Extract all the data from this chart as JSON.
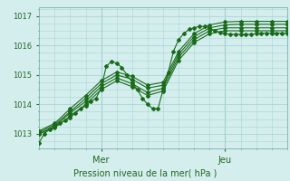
{
  "title": "Pression niveau de la mer( hPa )",
  "bg_color": "#d4eeee",
  "grid_color": "#aad4d4",
  "line_color": "#1a6b1a",
  "xlim": [
    0,
    96
  ],
  "ylim": [
    1012.5,
    1017.3
  ],
  "yticks": [
    1013,
    1014,
    1015,
    1016,
    1017
  ],
  "mer_x": 24,
  "jeu_x": 72,
  "series": [
    [
      0,
      1012.7,
      2,
      1013.0,
      4,
      1013.15,
      6,
      1013.25,
      8,
      1013.35,
      10,
      1013.45,
      12,
      1013.55,
      14,
      1013.7,
      16,
      1013.85,
      18,
      1013.95,
      20,
      1014.1,
      22,
      1014.2,
      24,
      1014.55,
      26,
      1015.3,
      28,
      1015.45,
      30,
      1015.4,
      32,
      1015.25,
      34,
      1015.0,
      36,
      1014.75,
      38,
      1014.5,
      40,
      1014.2,
      42,
      1014.0,
      44,
      1013.85,
      46,
      1013.85,
      48,
      1014.5,
      50,
      1015.1,
      52,
      1015.8,
      54,
      1016.2,
      56,
      1016.4,
      58,
      1016.55,
      60,
      1016.6,
      62,
      1016.65,
      64,
      1016.65,
      66,
      1016.6,
      68,
      1016.5,
      70,
      1016.45,
      72,
      1016.4,
      74,
      1016.38,
      76,
      1016.38,
      78,
      1016.38,
      80,
      1016.38,
      82,
      1016.38,
      84,
      1016.4,
      86,
      1016.42,
      88,
      1016.42,
      90,
      1016.42,
      92,
      1016.42,
      94,
      1016.42,
      96,
      1016.42
    ],
    [
      0,
      1013.0,
      6,
      1013.2,
      12,
      1013.6,
      18,
      1014.0,
      24,
      1014.5,
      30,
      1014.8,
      36,
      1014.6,
      42,
      1014.3,
      48,
      1014.45,
      54,
      1015.5,
      60,
      1016.1,
      66,
      1016.4,
      72,
      1016.5,
      78,
      1016.5,
      84,
      1016.5,
      90,
      1016.5,
      96,
      1016.5
    ],
    [
      0,
      1013.0,
      6,
      1013.25,
      12,
      1013.7,
      18,
      1014.1,
      24,
      1014.6,
      30,
      1014.9,
      36,
      1014.7,
      42,
      1014.4,
      48,
      1014.55,
      54,
      1015.6,
      60,
      1016.2,
      66,
      1016.5,
      72,
      1016.6,
      78,
      1016.6,
      84,
      1016.6,
      90,
      1016.6,
      96,
      1016.6
    ],
    [
      0,
      1013.05,
      6,
      1013.3,
      12,
      1013.75,
      18,
      1014.2,
      24,
      1014.7,
      30,
      1015.0,
      36,
      1014.85,
      42,
      1014.55,
      48,
      1014.65,
      54,
      1015.7,
      60,
      1016.3,
      66,
      1016.6,
      72,
      1016.7,
      78,
      1016.72,
      84,
      1016.72,
      90,
      1016.72,
      96,
      1016.72
    ],
    [
      0,
      1013.1,
      6,
      1013.35,
      12,
      1013.85,
      18,
      1014.3,
      24,
      1014.8,
      30,
      1015.1,
      36,
      1014.95,
      42,
      1014.65,
      48,
      1014.75,
      54,
      1015.8,
      60,
      1016.4,
      66,
      1016.7,
      72,
      1016.8,
      78,
      1016.82,
      84,
      1016.82,
      90,
      1016.82,
      96,
      1016.82
    ]
  ]
}
